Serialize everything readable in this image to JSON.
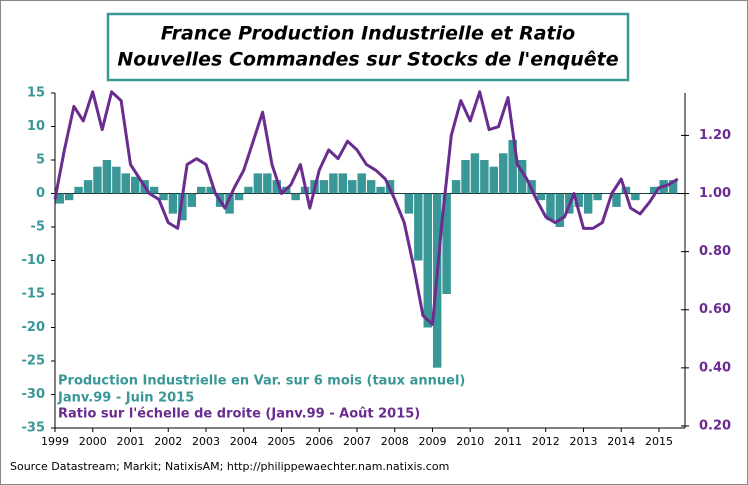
{
  "chart_data": {
    "type": "bar-line",
    "title": [
      "France Production Industrielle et Ratio",
      "Nouvelles Commandes sur Stocks de l'enquête"
    ],
    "source": "Source Datastream; Markit; NatixisAM; http://philippewaechter.nam.natixis.com",
    "annotation": "Janv.99 - Juin 2015",
    "xlim": [
      1999,
      2015.69
    ],
    "xticks": [
      1999,
      2000,
      2001,
      2002,
      2003,
      2004,
      2005,
      2006,
      2007,
      2008,
      2009,
      2010,
      2011,
      2012,
      2013,
      2014,
      2015
    ],
    "ylim": [
      -35,
      15
    ],
    "yticks": [
      15,
      10,
      5,
      0,
      -5,
      -10,
      -15,
      -20,
      -25,
      -30,
      -35
    ],
    "y2lim": [
      0.193,
      1.346
    ],
    "y2ticks": [
      {
        "value": 1.2,
        "label": "1.20"
      },
      {
        "value": 1.0,
        "label": "1.00"
      },
      {
        "value": 0.8,
        "label": "0.80"
      },
      {
        "value": 0.6,
        "label": "0.60"
      },
      {
        "value": 0.4,
        "label": "0.40"
      },
      {
        "value": 0.2,
        "label": "0.20"
      }
    ],
    "series": [
      {
        "name": "Production Industrielle  en Var. sur 6 mois (taux annuel)",
        "type": "bar",
        "color": "#3a9797",
        "x": [
          1999.125,
          1999.375,
          1999.625,
          1999.875,
          2000.125,
          2000.375,
          2000.625,
          2000.875,
          2001.125,
          2001.375,
          2001.625,
          2001.875,
          2002.125,
          2002.375,
          2002.625,
          2002.875,
          2003.125,
          2003.375,
          2003.625,
          2003.875,
          2004.125,
          2004.375,
          2004.625,
          2004.875,
          2005.125,
          2005.375,
          2005.625,
          2005.875,
          2006.125,
          2006.375,
          2006.625,
          2006.875,
          2007.125,
          2007.375,
          2007.625,
          2007.875,
          2008.125,
          2008.375,
          2008.625,
          2008.875,
          2009.125,
          2009.375,
          2009.625,
          2009.875,
          2010.125,
          2010.375,
          2010.625,
          2010.875,
          2011.125,
          2011.375,
          2011.625,
          2011.875,
          2012.125,
          2012.375,
          2012.625,
          2012.875,
          2013.125,
          2013.375,
          2013.625,
          2013.875,
          2014.125,
          2014.375,
          2014.625,
          2014.875,
          2015.125,
          2015.375
        ],
        "values": [
          -1.5,
          -1,
          1,
          2,
          4,
          5,
          4,
          3,
          2.5,
          2,
          1,
          -1,
          -3,
          -4,
          -2,
          1,
          1,
          -2,
          -3,
          -1,
          1,
          3,
          3,
          2,
          1,
          -1,
          1,
          2,
          2,
          3,
          3,
          2,
          3,
          2,
          1,
          2,
          0,
          -3,
          -10,
          -20,
          -26,
          -15,
          2,
          5,
          6,
          5,
          4,
          6,
          8,
          5,
          2,
          -1,
          -4,
          -5,
          -3,
          -2,
          -3,
          -1,
          0,
          -2,
          1,
          -1,
          0,
          1,
          2,
          2
        ]
      },
      {
        "name": "Ratio sur l'échelle de droite (Janv.99 - Août 2015)",
        "type": "line",
        "axis": "y2",
        "color": "#6a2c8f",
        "x": [
          1999,
          1999.25,
          1999.5,
          1999.75,
          2000,
          2000.25,
          2000.5,
          2000.75,
          2001,
          2001.25,
          2001.5,
          2001.75,
          2002,
          2002.25,
          2002.5,
          2002.75,
          2003,
          2003.25,
          2003.5,
          2003.75,
          2004,
          2004.25,
          2004.5,
          2004.75,
          2005,
          2005.25,
          2005.5,
          2005.75,
          2006,
          2006.25,
          2006.5,
          2006.75,
          2007,
          2007.25,
          2007.5,
          2007.75,
          2008,
          2008.25,
          2008.5,
          2008.75,
          2009,
          2009.25,
          2009.5,
          2009.75,
          2010,
          2010.25,
          2010.5,
          2010.75,
          2011,
          2011.25,
          2011.5,
          2011.75,
          2012,
          2012.25,
          2012.5,
          2012.75,
          2013,
          2013.25,
          2013.5,
          2013.75,
          2014,
          2014.25,
          2014.5,
          2014.75,
          2015,
          2015.25,
          2015.5
        ],
        "values": [
          0.98,
          1.15,
          1.3,
          1.25,
          1.35,
          1.22,
          1.35,
          1.32,
          1.1,
          1.05,
          1.0,
          0.98,
          0.9,
          0.88,
          1.1,
          1.12,
          1.1,
          1.0,
          0.95,
          1.02,
          1.08,
          1.18,
          1.28,
          1.1,
          1.0,
          1.03,
          1.1,
          0.95,
          1.08,
          1.15,
          1.12,
          1.18,
          1.15,
          1.1,
          1.08,
          1.05,
          0.98,
          0.9,
          0.75,
          0.58,
          0.55,
          0.9,
          1.2,
          1.32,
          1.25,
          1.35,
          1.22,
          1.23,
          1.33,
          1.1,
          1.05,
          0.98,
          0.92,
          0.9,
          0.92,
          1.0,
          0.88,
          0.88,
          0.9,
          1.0,
          1.05,
          0.95,
          0.93,
          0.97,
          1.02,
          1.03,
          1.05
        ]
      }
    ]
  }
}
